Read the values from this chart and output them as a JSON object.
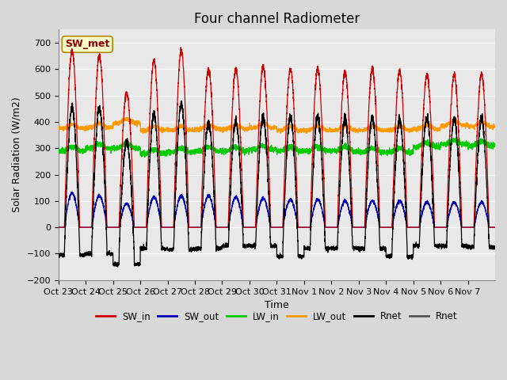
{
  "title": "Four channel Radiometer",
  "xlabel": "Time",
  "ylabel": "Solar Radiation (W/m2)",
  "ylim": [
    -200,
    750
  ],
  "yticks": [
    -200,
    -100,
    0,
    100,
    200,
    300,
    400,
    500,
    600,
    700
  ],
  "annotation": "SW_met",
  "fig_bg": "#d8d8d8",
  "plot_bg": "#e8e8e8",
  "grid_color": "#ffffff",
  "n_days": 16,
  "day_labels": [
    "Oct 23",
    "Oct 24",
    "Oct 25",
    "Oct 26",
    "Oct 27",
    "Oct 28",
    "Oct 29",
    "Oct 30",
    "Oct 31",
    "Nov 1",
    "Nov 2",
    "Nov 3",
    "Nov 4",
    "Nov 5",
    "Nov 6",
    "Nov 7"
  ],
  "SW_in_peaks": [
    670,
    650,
    510,
    630,
    670,
    600,
    600,
    610,
    600,
    600,
    590,
    600,
    590,
    580,
    580,
    580
  ],
  "SW_out_peaks": [
    130,
    120,
    90,
    115,
    120,
    120,
    115,
    110,
    105,
    105,
    100,
    100,
    100,
    95,
    95,
    95
  ],
  "LW_in_base": [
    290,
    300,
    300,
    280,
    285,
    290,
    290,
    295,
    290,
    290,
    290,
    285,
    285,
    305,
    315,
    310
  ],
  "LW_out_base": [
    375,
    378,
    395,
    368,
    368,
    373,
    373,
    377,
    368,
    368,
    368,
    368,
    368,
    373,
    387,
    382
  ],
  "Rnet_night": [
    -105,
    -100,
    -140,
    -80,
    -85,
    -80,
    -70,
    -70,
    -110,
    -80,
    -80,
    -80,
    -110,
    -70,
    -70,
    -75
  ],
  "colors": {
    "SW_in": "#cc0000",
    "SW_out": "#0000bb",
    "LW_in": "#00cc00",
    "LW_out": "#ff9900",
    "Rnet": "#000000"
  },
  "legend_labels": [
    "SW_in",
    "SW_out",
    "LW_in",
    "LW_out",
    "Rnet",
    "Rnet"
  ],
  "legend_colors": [
    "#cc0000",
    "#0000bb",
    "#00cc00",
    "#ff9900",
    "#000000",
    "#555555"
  ],
  "title_fontsize": 12,
  "axis_fontsize": 9,
  "tick_fontsize": 8
}
